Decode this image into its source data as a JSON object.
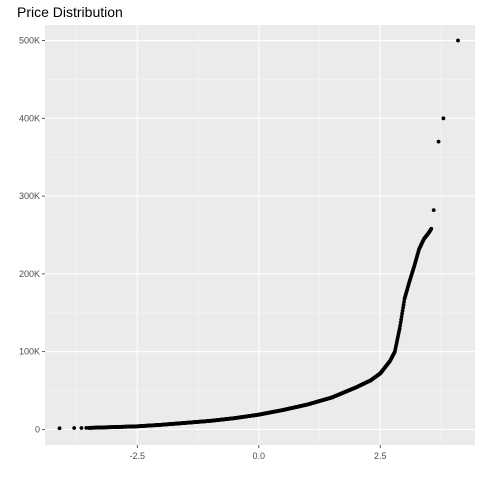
{
  "chart_data": {
    "type": "scatter",
    "title": "Price Distribution",
    "xlabel": "",
    "ylabel": "",
    "xlim": [
      -4.4,
      4.45
    ],
    "ylim": [
      -20000,
      520000
    ],
    "grid": true,
    "x_ticks": [
      {
        "value": -2.5,
        "label": "-2.5"
      },
      {
        "value": 0,
        "label": "0.0"
      },
      {
        "value": 2.5,
        "label": "2.5"
      }
    ],
    "y_ticks": [
      {
        "value": 0,
        "label": "0"
      },
      {
        "value": 100000,
        "label": "100K"
      },
      {
        "value": 200000,
        "label": "200K"
      },
      {
        "value": 300000,
        "label": "300K"
      },
      {
        "value": 400000,
        "label": "400K"
      },
      {
        "value": 500000,
        "label": "500K"
      }
    ],
    "curve": [
      [
        -4.1,
        1500
      ],
      [
        -3.5,
        2000
      ],
      [
        -3.0,
        3000
      ],
      [
        -2.5,
        4000
      ],
      [
        -2.0,
        6000
      ],
      [
        -1.5,
        8500
      ],
      [
        -1.0,
        11000
      ],
      [
        -0.5,
        14500
      ],
      [
        0.0,
        19000
      ],
      [
        0.5,
        25000
      ],
      [
        1.0,
        32000
      ],
      [
        1.5,
        41000
      ],
      [
        2.0,
        54000
      ],
      [
        2.3,
        63000
      ],
      [
        2.5,
        72000
      ],
      [
        2.7,
        88000
      ],
      [
        2.8,
        100000
      ],
      [
        2.9,
        130000
      ],
      [
        3.0,
        168000
      ],
      [
        3.1,
        190000
      ],
      [
        3.2,
        210000
      ],
      [
        3.3,
        232000
      ],
      [
        3.4,
        245000
      ],
      [
        3.5,
        253000
      ],
      [
        3.55,
        258000
      ]
    ],
    "points": [
      [
        -4.1,
        1500
      ],
      [
        -3.8,
        1800
      ],
      [
        -3.65,
        1900
      ],
      [
        -3.55,
        2000
      ],
      [
        3.6,
        282000
      ],
      [
        3.7,
        370000
      ],
      [
        3.8,
        400000
      ],
      [
        4.1,
        500000
      ]
    ]
  }
}
